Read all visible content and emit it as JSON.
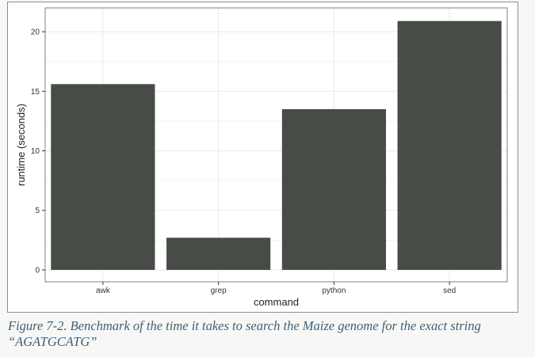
{
  "chart_data": {
    "type": "bar",
    "categories": [
      "awk",
      "grep",
      "python",
      "sed"
    ],
    "values": [
      15.6,
      2.7,
      13.5,
      20.9
    ],
    "title": "",
    "xlabel": "command",
    "ylabel": "runtime (seconds)",
    "ylim": [
      -1.0,
      22.0
    ],
    "yticks": [
      0,
      5,
      10,
      15,
      20
    ],
    "grid": true,
    "bar_color": "#474c46",
    "grid_color": "#ebebeb",
    "panel_border_color": "#7f7f7f"
  },
  "caption": "Figure 7-2. Benchmark of the time it takes to search the Maize genome for the exact string “AGATGCATG”"
}
